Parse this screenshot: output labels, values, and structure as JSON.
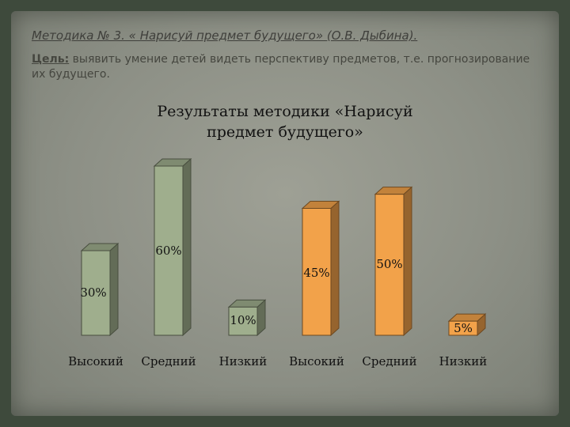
{
  "heading": {
    "method": "Методика № 3. « Нарисуй предмет будущего» (О.В. Дыбина).",
    "goal_label": "Цель:",
    "goal_text": " выявить умение детей видеть перспективу предметов, т.е. прогнозирование их будущего."
  },
  "chart_data": {
    "type": "bar",
    "title": "Результаты методики «Нарисуй предмет будущего»",
    "categories": [
      "Высокий",
      "Средний",
      "Низкий",
      "Высокий",
      "Средний",
      "Низкий"
    ],
    "series": [
      {
        "values": [
          30,
          60,
          10,
          null,
          null,
          null
        ],
        "color": "#9fae8d"
      },
      {
        "values": [
          null,
          null,
          null,
          45,
          50,
          5
        ],
        "color": "#f2a24a"
      }
    ],
    "data_labels": [
      "30%",
      "60%",
      "10%",
      "45%",
      "50%",
      "5%"
    ],
    "ylim": [
      0,
      60
    ],
    "three_d": true,
    "grid": false,
    "legend": "none"
  }
}
